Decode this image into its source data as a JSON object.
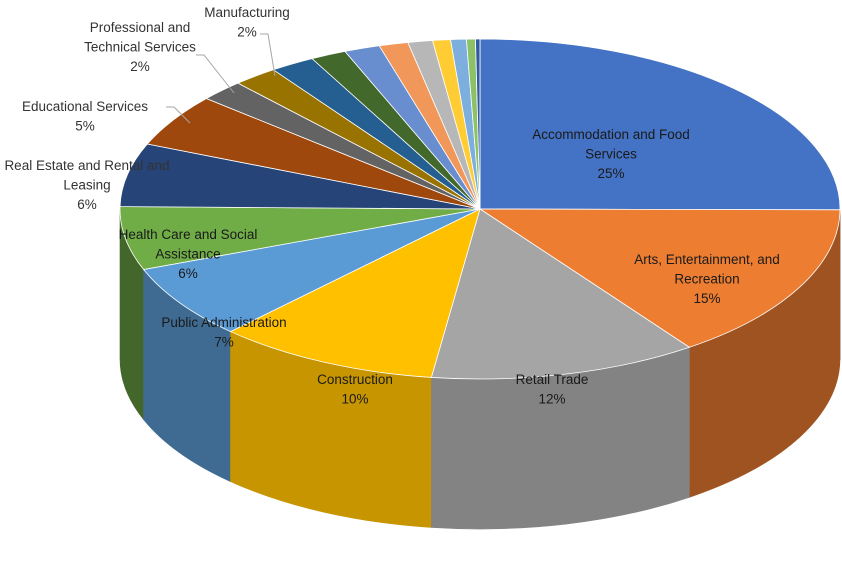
{
  "chart_data": {
    "type": "pie",
    "style": "3d",
    "title": "",
    "slices": [
      {
        "name": "Accommodation and Food Services",
        "value": 25,
        "label_lines": [
          "Accommodation and Food",
          "Services",
          "25%"
        ],
        "color": "#4472c4"
      },
      {
        "name": "Arts, Entertainment, and Recreation",
        "value": 15,
        "label_lines": [
          "Arts, Entertainment, and",
          "Recreation",
          "15%"
        ],
        "color": "#ed7d31"
      },
      {
        "name": "Retail Trade",
        "value": 12,
        "label_lines": [
          "Retail Trade",
          "12%"
        ],
        "color": "#a5a5a5"
      },
      {
        "name": "Construction",
        "value": 10,
        "label_lines": [
          "Construction",
          "10%"
        ],
        "color": "#ffc000"
      },
      {
        "name": "Public Administration",
        "value": 7,
        "label_lines": [
          "Public Administration",
          "7%"
        ],
        "color": "#5b9bd5"
      },
      {
        "name": "Health Care and Social Assistance",
        "value": 6,
        "label_lines": [
          "Health Care and Social",
          "Assistance",
          "6%"
        ],
        "color": "#70ad47"
      },
      {
        "name": "Real Estate and Rental and Leasing",
        "value": 6,
        "label_lines": [
          "Real Estate and Rental and",
          "Leasing",
          "6%"
        ],
        "color": "#264478"
      },
      {
        "name": "Educational Services",
        "value": 5,
        "label_lines": [
          "Educational Services",
          "5%"
        ],
        "color": "#9e480e"
      },
      {
        "name": "Professional and Technical Services",
        "value": 2,
        "label_lines": [
          "Professional and",
          "Technical Services",
          "2%"
        ],
        "color": "#636363"
      },
      {
        "name": "Manufacturing",
        "value": 2,
        "label_lines": [
          "Manufacturing",
          "2%"
        ],
        "color": "#997300"
      },
      {
        "name": "",
        "value": 2,
        "label_lines": [],
        "color": "#255e91"
      },
      {
        "name": "",
        "value": 1.6,
        "label_lines": [],
        "color": "#43682b"
      },
      {
        "name": "",
        "value": 1.6,
        "label_lines": [],
        "color": "#698ed0"
      },
      {
        "name": "",
        "value": 1.3,
        "label_lines": [],
        "color": "#f1975a"
      },
      {
        "name": "",
        "value": 1.1,
        "label_lines": [],
        "color": "#b7b7b7"
      },
      {
        "name": "",
        "value": 0.8,
        "label_lines": [],
        "color": "#ffcd33"
      },
      {
        "name": "",
        "value": 0.7,
        "label_lines": [],
        "color": "#7cafdd"
      },
      {
        "name": "",
        "value": 0.4,
        "label_lines": [],
        "color": "#8cc168"
      },
      {
        "name": "",
        "value": 0.2,
        "label_lines": [],
        "color": "#335aa1"
      }
    ]
  }
}
